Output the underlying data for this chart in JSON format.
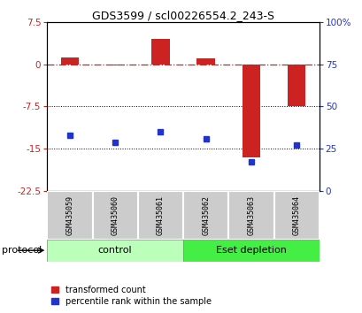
{
  "title": "GDS3599 / scl00226554.2_243-S",
  "categories": [
    "GSM435059",
    "GSM435060",
    "GSM435061",
    "GSM435062",
    "GSM435063",
    "GSM435064"
  ],
  "red_values": [
    1.2,
    -0.2,
    4.5,
    1.0,
    -16.5,
    -7.5
  ],
  "blue_pct": [
    33,
    29,
    35,
    31,
    17,
    27
  ],
  "ylim_left": [
    -22.5,
    7.5
  ],
  "ylim_right": [
    0,
    100
  ],
  "yticks_left": [
    7.5,
    0,
    -7.5,
    -15,
    -22.5
  ],
  "yticks_right": [
    100,
    75,
    50,
    25,
    0
  ],
  "ytick_labels_left": [
    "7.5",
    "0",
    "-7.5",
    "-15",
    "-22.5"
  ],
  "ytick_labels_right": [
    "100%",
    "75",
    "50",
    "25",
    "0"
  ],
  "hlines_dotted": [
    -7.5,
    -15
  ],
  "hline_dashdot": 0,
  "control_label": "control",
  "treatment_label": "Eset depletion",
  "protocol_label": "protocol",
  "legend_red": "transformed count",
  "legend_blue": "percentile rank within the sample",
  "red_color": "#CC2222",
  "blue_color": "#2233CC",
  "control_color": "#BBFFBB",
  "treatment_color": "#44EE44",
  "bar_width": 0.4,
  "background_color": "#FFFFFF",
  "plot_bg": "#FFFFFF",
  "label_bg": "#CCCCCC",
  "n_control": 3,
  "n_treatment": 3
}
